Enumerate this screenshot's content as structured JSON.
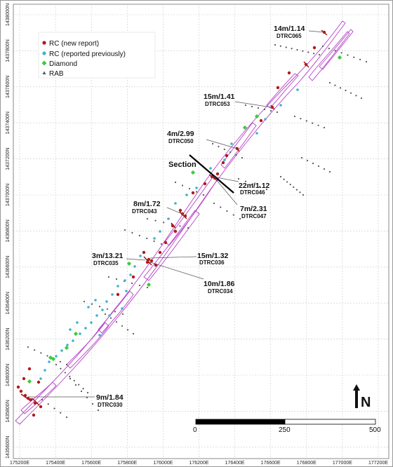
{
  "map": {
    "y_axis_labels": [
      "1438000N",
      "1437800N",
      "1437600N",
      "1437400N",
      "1437200N",
      "1437000N",
      "1436800N",
      "1436600N",
      "1436400N",
      "1436200N",
      "1436000N",
      "1435800N",
      "1435600N"
    ],
    "x_axis_labels": [
      "175200E",
      "175400E",
      "175600E",
      "175800E",
      "176000E",
      "176200E",
      "176400E",
      "176600E",
      "176800E",
      "177000E",
      "177200E"
    ],
    "legend": [
      {
        "label": "RC (new report)",
        "color": "#b01a1a"
      },
      {
        "label": "RC (reported previously)",
        "color": "#3fb3c8"
      },
      {
        "label": "Diamond",
        "color": "#3ccc3c"
      },
      {
        "label": "RAB",
        "color": "#555555"
      }
    ],
    "section_label": "Section",
    "annotations": [
      {
        "value": "14m/1.14",
        "hole": "DTRC065"
      },
      {
        "value": "15m/1.41",
        "hole": "DTRC053"
      },
      {
        "value": "4m/2.99",
        "hole": "DTRC050"
      },
      {
        "value": "22m/1.12",
        "hole": "DTRC046"
      },
      {
        "value": "7m/2.31",
        "hole": "DTRC047"
      },
      {
        "value": "8m/1.72",
        "hole": "DTRC043"
      },
      {
        "value": "3m/13.21",
        "hole": "DTRC035"
      },
      {
        "value": "15m/1.32",
        "hole": "DTRC036"
      },
      {
        "value": "10m/1.86",
        "hole": "DTRC034"
      },
      {
        "value": "9m/1.84",
        "hole": "DTRC030"
      }
    ],
    "scale_bar": {
      "labels": [
        "0",
        "250",
        "500"
      ]
    },
    "north_label": "N"
  }
}
